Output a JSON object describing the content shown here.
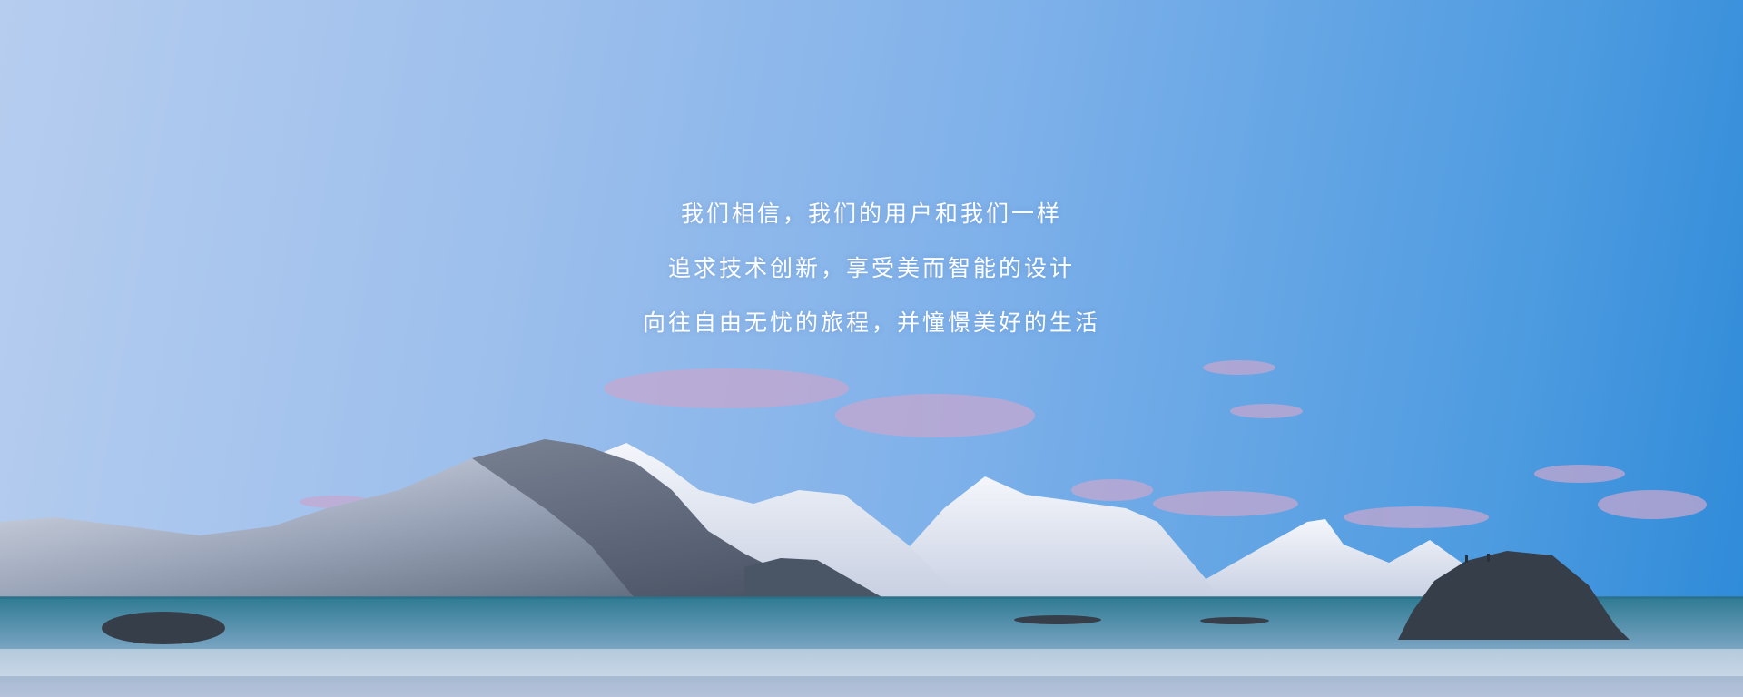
{
  "hero": {
    "image_description_icon": "snowy-mountains-seascape",
    "colors": {
      "sky_left": "#b6cdef",
      "sky_right": "#2e8ad8",
      "sea": "#3d7f9a",
      "snow": "#eef1f8",
      "rock": "#3b4350",
      "cloud": "#c7a8d0",
      "text": "#ffffff"
    },
    "slogan": {
      "lines": [
        "我们相信，我们的用户和我们一样",
        "追求技术创新，享受美而智能的设计",
        "向往自由无忧的旅程，并憧憬美好的生活"
      ]
    }
  }
}
